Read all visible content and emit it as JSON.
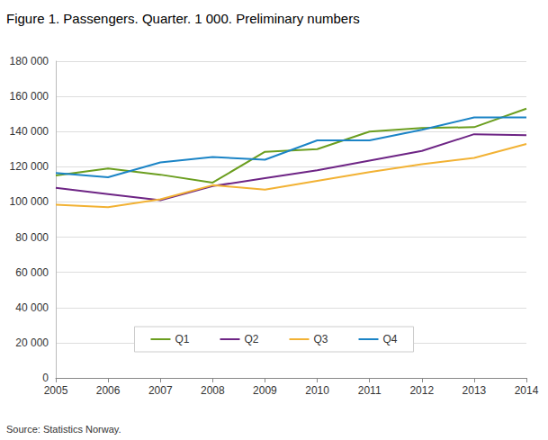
{
  "chart_data": {
    "type": "line",
    "title": "Figure 1. Passengers. Quarter. 1 000. Preliminary numbers",
    "source": "Source: Statistics Norway.",
    "categories": [
      "2005",
      "2006",
      "2007",
      "2008",
      "2009",
      "2010",
      "2011",
      "2012",
      "2013",
      "2014"
    ],
    "series": [
      {
        "name": "Q1",
        "color": "#6b9e1f",
        "values": [
          115000,
          119000,
          115500,
          111000,
          128500,
          130000,
          140000,
          142000,
          142500,
          153000
        ]
      },
      {
        "name": "Q2",
        "color": "#6e2585",
        "values": [
          108000,
          104500,
          101000,
          109000,
          113500,
          118000,
          123500,
          129000,
          138500,
          138000
        ]
      },
      {
        "name": "Q3",
        "color": "#f2b234",
        "values": [
          98500,
          97000,
          101500,
          109500,
          107000,
          112000,
          117000,
          121500,
          125000,
          133000
        ]
      },
      {
        "name": "Q4",
        "color": "#1b84c6",
        "values": [
          116500,
          114000,
          122500,
          125500,
          124000,
          135000,
          135000,
          141000,
          148000,
          148000
        ]
      }
    ],
    "ylim": [
      0,
      180000
    ],
    "yticks": [
      0,
      {
        "value": 20000,
        "label": "20 000"
      },
      {
        "value": 40000,
        "label": "40 000"
      },
      {
        "value": 60000,
        "label": "60 000"
      },
      {
        "value": 80000,
        "label": "80 000"
      },
      {
        "value": 100000,
        "label": "100 000"
      },
      {
        "value": 120000,
        "label": "120 000"
      },
      {
        "value": 140000,
        "label": "140 000"
      },
      {
        "value": 160000,
        "label": "160 000"
      },
      {
        "value": 180000,
        "label": "180 000"
      }
    ],
    "grid": true,
    "legend": "bottom"
  }
}
